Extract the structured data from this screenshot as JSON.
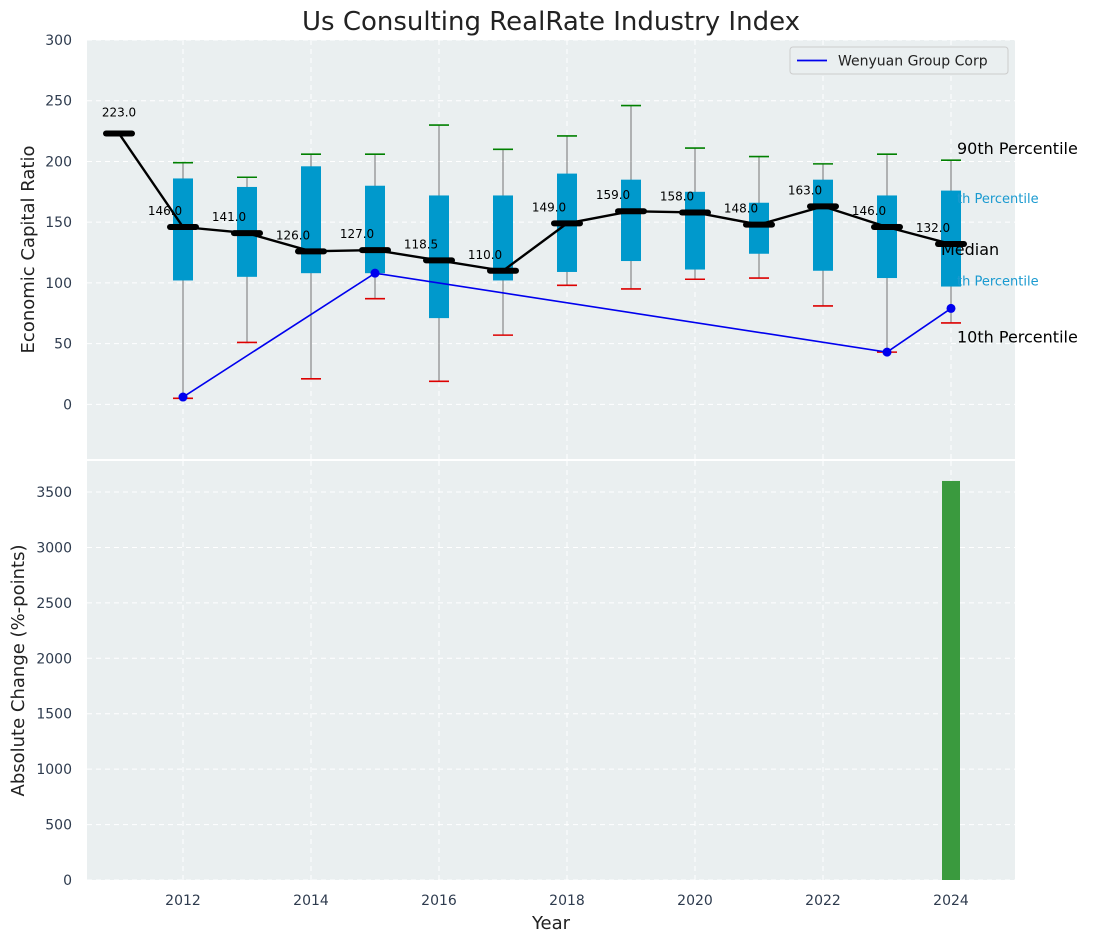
{
  "chart_data": [
    {
      "type": "box",
      "title": "Us Consulting RealRate Industry Index",
      "xlabel": "",
      "ylabel": "Economic Capital Ratio",
      "ylim": [
        -45,
        300
      ],
      "yticks": [
        0,
        50,
        100,
        150,
        200,
        250,
        300
      ],
      "xlim": [
        2010.5,
        2025
      ],
      "grid": true,
      "legend": {
        "entries": [
          "Wenyuan Group Corp"
        ],
        "placement": "top-right"
      },
      "colors": {
        "box": "#0099cc",
        "median": "#000000",
        "whisker_top": "#008000",
        "whisker_bottom": "#dd0000",
        "company": "#0000ee",
        "background": "#eaeff0"
      },
      "boxes": [
        {
          "year": 2012,
          "p10": 5,
          "q1": 102,
          "q3": 186,
          "p90": 199
        },
        {
          "year": 2013,
          "p10": 51,
          "q1": 105,
          "q3": 179,
          "p90": 187
        },
        {
          "year": 2014,
          "p10": 21,
          "q1": 108,
          "q3": 196,
          "p90": 206
        },
        {
          "year": 2015,
          "p10": 87,
          "q1": 108,
          "q3": 180,
          "p90": 206
        },
        {
          "year": 2016,
          "p10": 19,
          "q1": 71,
          "q3": 172,
          "p90": 230
        },
        {
          "year": 2017,
          "p10": 57,
          "q1": 102,
          "q3": 172,
          "p90": 210
        },
        {
          "year": 2018,
          "p10": 98,
          "q1": 109,
          "q3": 190,
          "p90": 221
        },
        {
          "year": 2019,
          "p10": 95,
          "q1": 118,
          "q3": 185,
          "p90": 246
        },
        {
          "year": 2020,
          "p10": 103,
          "q1": 111,
          "q3": 175,
          "p90": 211
        },
        {
          "year": 2021,
          "p10": 104,
          "q1": 124,
          "q3": 166,
          "p90": 204
        },
        {
          "year": 2022,
          "p10": 81,
          "q1": 110,
          "q3": 185,
          "p90": 198
        },
        {
          "year": 2023,
          "p10": 43,
          "q1": 104,
          "q3": 172,
          "p90": 206
        },
        {
          "year": 2024,
          "p10": 67,
          "q1": 97,
          "q3": 176,
          "p90": 201
        }
      ],
      "median": {
        "x": [
          2011,
          2012,
          2013,
          2014,
          2015,
          2016,
          2017,
          2018,
          2019,
          2020,
          2021,
          2022,
          2023,
          2024
        ],
        "values": [
          223.0,
          146.0,
          141.0,
          126.0,
          127.0,
          118.5,
          110.0,
          149.0,
          159.0,
          158.0,
          148.0,
          163.0,
          146.0,
          132.0
        ],
        "labels": [
          "223.0",
          "146.0",
          "141.0",
          "126.0",
          "127.0",
          "118.5",
          "110.0",
          "149.0",
          "159.0",
          "158.0",
          "148.0",
          "163.0",
          "146.0",
          "132.0"
        ]
      },
      "series": [
        {
          "name": "Wenyuan Group Corp",
          "x": [
            2012,
            2015,
            2023,
            2024
          ],
          "values": [
            6,
            108,
            43,
            79
          ]
        }
      ],
      "annotations": [
        "90th Percentile",
        "th Percentile",
        "Median",
        "th Percentile",
        "10th Percentile"
      ]
    },
    {
      "type": "bar",
      "xlabel": "Year",
      "ylabel": "Absolute Change (%-points)",
      "ylim": [
        0,
        3780
      ],
      "yticks": [
        0,
        500,
        1000,
        1500,
        2000,
        2500,
        3000,
        3500
      ],
      "xticks": [
        2012,
        2014,
        2016,
        2018,
        2020,
        2022,
        2024
      ],
      "grid": true,
      "bar_color": "#3a9a3e",
      "categories": [
        2024
      ],
      "values": [
        3600
      ]
    }
  ]
}
